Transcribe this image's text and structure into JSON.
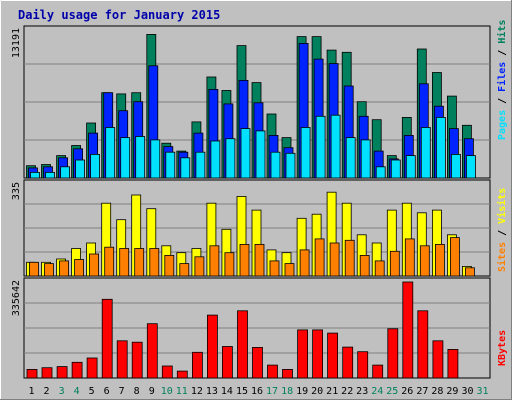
{
  "chart_data": [
    {
      "type": "bar",
      "title": "Daily usage for January 2015",
      "ylabel_parts": [
        "Pages",
        "Files",
        "Hits"
      ],
      "ymax": 13191,
      "ymax_label": "13191",
      "categories": [
        "1",
        "2",
        "3",
        "4",
        "5",
        "6",
        "7",
        "8",
        "9",
        "10",
        "11",
        "12",
        "13",
        "14",
        "15",
        "16",
        "17",
        "18",
        "19",
        "20",
        "21",
        "22",
        "23",
        "24",
        "25",
        "26",
        "27",
        "28",
        "29",
        "30",
        "31"
      ],
      "weekend_days": [
        "3",
        "4",
        "10",
        "11",
        "17",
        "18",
        "24",
        "25",
        "31"
      ],
      "series": [
        {
          "name": "Hits",
          "color": "#00805c",
          "values": [
            1100,
            1200,
            2000,
            2900,
            4900,
            7600,
            7500,
            7600,
            12800,
            3100,
            2400,
            5000,
            9000,
            7800,
            11800,
            8500,
            5700,
            3600,
            12600,
            12600,
            11400,
            11200,
            6800,
            5200,
            2000,
            5400,
            11500,
            9400,
            7300,
            4700,
            0
          ]
        },
        {
          "name": "Files",
          "color": "#0024ff",
          "values": [
            900,
            1000,
            1800,
            2600,
            4000,
            7600,
            6000,
            6800,
            10000,
            2800,
            2300,
            4000,
            7900,
            6600,
            8700,
            6700,
            3800,
            2700,
            12000,
            10600,
            10200,
            8200,
            5500,
            2400,
            1700,
            3800,
            8400,
            6400,
            4400,
            3500,
            0
          ]
        },
        {
          "name": "Pages",
          "color": "#00e0ff",
          "values": [
            500,
            500,
            1000,
            1600,
            2100,
            4500,
            3600,
            3700,
            3400,
            2300,
            1800,
            2300,
            3300,
            3500,
            4400,
            4200,
            2300,
            2200,
            4500,
            5500,
            5600,
            3600,
            3400,
            1000,
            1600,
            2000,
            4500,
            5400,
            2100,
            2000,
            0
          ]
        }
      ]
    },
    {
      "type": "bar",
      "ymax": 335,
      "ymax_label": "335",
      "ylabel_parts": [
        "Sites",
        "Visits"
      ],
      "series": [
        {
          "name": "Visits",
          "color": "#ffff00",
          "values": [
            50,
            50,
            62,
            100,
            120,
            265,
            205,
            295,
            245,
            110,
            85,
            100,
            265,
            170,
            290,
            240,
            95,
            85,
            210,
            225,
            305,
            265,
            150,
            120,
            240,
            265,
            230,
            240,
            150,
            35,
            0
          ]
        },
        {
          "name": "Sites",
          "color": "#ff8000",
          "values": [
            50,
            45,
            55,
            60,
            80,
            105,
            100,
            100,
            100,
            75,
            45,
            70,
            110,
            85,
            115,
            115,
            55,
            45,
            95,
            135,
            120,
            130,
            75,
            55,
            90,
            135,
            110,
            115,
            140,
            30,
            0
          ]
        }
      ]
    },
    {
      "type": "bar",
      "ymax": 335642,
      "ymax_label": "335642",
      "ylabel_parts": [
        "KBytes"
      ],
      "series": [
        {
          "name": "KBytes",
          "color": "#ff0000",
          "values": [
            30000,
            36000,
            40000,
            55000,
            70000,
            275000,
            130000,
            125000,
            190000,
            42000,
            24000,
            90000,
            220000,
            110000,
            235000,
            107000,
            45000,
            30000,
            168000,
            168000,
            157000,
            108000,
            92000,
            45000,
            172000,
            335642,
            235000,
            130000,
            100000,
            0,
            0
          ]
        }
      ]
    }
  ]
}
